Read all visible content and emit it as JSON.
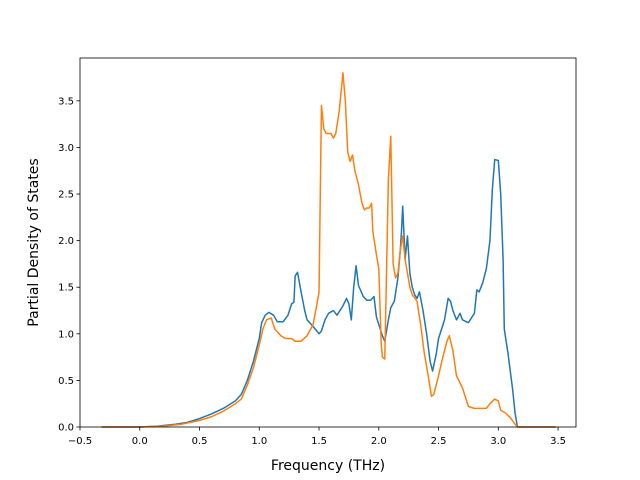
{
  "chart_data": {
    "type": "line",
    "title": "",
    "xlabel": "Frequency (THz)",
    "ylabel": "Partial Density of States",
    "xlim": [
      -0.5,
      3.65
    ],
    "ylim": [
      0.0,
      3.96
    ],
    "xticks": [
      -0.5,
      0.0,
      0.5,
      1.0,
      1.5,
      2.0,
      2.5,
      3.0,
      3.5
    ],
    "xtick_labels": [
      "−0.5",
      "0.0",
      "0.5",
      "1.0",
      "1.5",
      "2.0",
      "2.5",
      "3.0",
      "3.5"
    ],
    "yticks": [
      0.0,
      0.5,
      1.0,
      1.5,
      2.0,
      2.5,
      3.0,
      3.5
    ],
    "ytick_labels": [
      "0.0",
      "0.5",
      "1.0",
      "1.5",
      "2.0",
      "2.5",
      "3.0",
      "3.5"
    ],
    "grid": false,
    "series": [
      {
        "color": "#1f77b4",
        "points": [
          [
            -0.32,
            0.0
          ],
          [
            0.0,
            0.0
          ],
          [
            0.15,
            0.01
          ],
          [
            0.3,
            0.03
          ],
          [
            0.4,
            0.05
          ],
          [
            0.5,
            0.09
          ],
          [
            0.6,
            0.14
          ],
          [
            0.7,
            0.2
          ],
          [
            0.8,
            0.28
          ],
          [
            0.85,
            0.35
          ],
          [
            0.9,
            0.5
          ],
          [
            0.95,
            0.7
          ],
          [
            1.0,
            0.95
          ],
          [
            1.02,
            1.12
          ],
          [
            1.05,
            1.2
          ],
          [
            1.08,
            1.23
          ],
          [
            1.12,
            1.2
          ],
          [
            1.15,
            1.13
          ],
          [
            1.2,
            1.13
          ],
          [
            1.24,
            1.2
          ],
          [
            1.27,
            1.32
          ],
          [
            1.29,
            1.34
          ],
          [
            1.3,
            1.62
          ],
          [
            1.32,
            1.66
          ],
          [
            1.35,
            1.45
          ],
          [
            1.38,
            1.25
          ],
          [
            1.4,
            1.15
          ],
          [
            1.45,
            1.08
          ],
          [
            1.5,
            1.0
          ],
          [
            1.52,
            1.03
          ],
          [
            1.55,
            1.15
          ],
          [
            1.58,
            1.22
          ],
          [
            1.62,
            1.25
          ],
          [
            1.65,
            1.2
          ],
          [
            1.7,
            1.3
          ],
          [
            1.73,
            1.38
          ],
          [
            1.75,
            1.32
          ],
          [
            1.77,
            1.15
          ],
          [
            1.79,
            1.5
          ],
          [
            1.81,
            1.73
          ],
          [
            1.83,
            1.52
          ],
          [
            1.87,
            1.4
          ],
          [
            1.9,
            1.36
          ],
          [
            1.93,
            1.36
          ],
          [
            1.96,
            1.4
          ],
          [
            1.98,
            1.18
          ],
          [
            2.0,
            1.1
          ],
          [
            2.03,
            0.98
          ],
          [
            2.05,
            0.92
          ],
          [
            2.08,
            1.15
          ],
          [
            2.1,
            1.28
          ],
          [
            2.13,
            1.35
          ],
          [
            2.16,
            1.6
          ],
          [
            2.18,
            1.9
          ],
          [
            2.19,
            2.1
          ],
          [
            2.2,
            2.37
          ],
          [
            2.22,
            1.8
          ],
          [
            2.24,
            2.05
          ],
          [
            2.26,
            1.65
          ],
          [
            2.28,
            1.5
          ],
          [
            2.3,
            1.42
          ],
          [
            2.32,
            1.38
          ],
          [
            2.34,
            1.45
          ],
          [
            2.37,
            1.25
          ],
          [
            2.4,
            1.0
          ],
          [
            2.43,
            0.7
          ],
          [
            2.45,
            0.6
          ],
          [
            2.48,
            0.78
          ],
          [
            2.5,
            0.95
          ],
          [
            2.55,
            1.15
          ],
          [
            2.58,
            1.38
          ],
          [
            2.6,
            1.35
          ],
          [
            2.62,
            1.25
          ],
          [
            2.65,
            1.15
          ],
          [
            2.68,
            1.22
          ],
          [
            2.7,
            1.15
          ],
          [
            2.75,
            1.12
          ],
          [
            2.8,
            1.22
          ],
          [
            2.82,
            1.47
          ],
          [
            2.84,
            1.45
          ],
          [
            2.87,
            1.55
          ],
          [
            2.9,
            1.7
          ],
          [
            2.93,
            2.0
          ],
          [
            2.95,
            2.55
          ],
          [
            2.97,
            2.87
          ],
          [
            3.0,
            2.86
          ],
          [
            3.02,
            2.5
          ],
          [
            3.04,
            1.8
          ],
          [
            3.05,
            1.05
          ],
          [
            3.08,
            0.8
          ],
          [
            3.12,
            0.4
          ],
          [
            3.14,
            0.15
          ],
          [
            3.16,
            0.0
          ],
          [
            3.48,
            0.0
          ]
        ]
      },
      {
        "color": "#ff7f0e",
        "points": [
          [
            -0.32,
            0.0
          ],
          [
            0.0,
            0.0
          ],
          [
            0.2,
            0.01
          ],
          [
            0.35,
            0.03
          ],
          [
            0.5,
            0.07
          ],
          [
            0.6,
            0.11
          ],
          [
            0.7,
            0.17
          ],
          [
            0.8,
            0.25
          ],
          [
            0.85,
            0.3
          ],
          [
            0.9,
            0.45
          ],
          [
            0.95,
            0.63
          ],
          [
            1.0,
            0.88
          ],
          [
            1.03,
            1.05
          ],
          [
            1.06,
            1.15
          ],
          [
            1.1,
            1.17
          ],
          [
            1.13,
            1.05
          ],
          [
            1.18,
            0.98
          ],
          [
            1.22,
            0.95
          ],
          [
            1.27,
            0.95
          ],
          [
            1.3,
            0.92
          ],
          [
            1.35,
            0.92
          ],
          [
            1.4,
            0.98
          ],
          [
            1.45,
            1.1
          ],
          [
            1.48,
            1.3
          ],
          [
            1.5,
            1.45
          ],
          [
            1.52,
            3.45
          ],
          [
            1.54,
            3.2
          ],
          [
            1.56,
            3.15
          ],
          [
            1.6,
            3.15
          ],
          [
            1.62,
            3.1
          ],
          [
            1.64,
            3.15
          ],
          [
            1.67,
            3.4
          ],
          [
            1.7,
            3.8
          ],
          [
            1.72,
            3.5
          ],
          [
            1.74,
            2.95
          ],
          [
            1.76,
            2.85
          ],
          [
            1.78,
            2.92
          ],
          [
            1.8,
            2.75
          ],
          [
            1.83,
            2.6
          ],
          [
            1.86,
            2.4
          ],
          [
            1.88,
            2.33
          ],
          [
            1.9,
            2.35
          ],
          [
            1.92,
            2.35
          ],
          [
            1.94,
            2.4
          ],
          [
            1.95,
            2.1
          ],
          [
            1.98,
            1.85
          ],
          [
            2.0,
            1.7
          ],
          [
            2.02,
            0.9
          ],
          [
            2.03,
            0.75
          ],
          [
            2.05,
            0.73
          ],
          [
            2.07,
            2.0
          ],
          [
            2.08,
            2.65
          ],
          [
            2.1,
            3.12
          ],
          [
            2.12,
            1.75
          ],
          [
            2.14,
            1.6
          ],
          [
            2.16,
            1.65
          ],
          [
            2.18,
            1.9
          ],
          [
            2.2,
            2.05
          ],
          [
            2.22,
            1.8
          ],
          [
            2.24,
            1.65
          ],
          [
            2.26,
            1.5
          ],
          [
            2.28,
            1.42
          ],
          [
            2.32,
            1.35
          ],
          [
            2.35,
            1.1
          ],
          [
            2.38,
            0.8
          ],
          [
            2.42,
            0.5
          ],
          [
            2.44,
            0.33
          ],
          [
            2.46,
            0.35
          ],
          [
            2.5,
            0.55
          ],
          [
            2.53,
            0.72
          ],
          [
            2.57,
            0.92
          ],
          [
            2.59,
            0.98
          ],
          [
            2.62,
            0.82
          ],
          [
            2.65,
            0.55
          ],
          [
            2.7,
            0.42
          ],
          [
            2.75,
            0.22
          ],
          [
            2.8,
            0.2
          ],
          [
            2.85,
            0.2
          ],
          [
            2.9,
            0.2
          ],
          [
            2.93,
            0.25
          ],
          [
            2.97,
            0.3
          ],
          [
            3.0,
            0.28
          ],
          [
            3.02,
            0.18
          ],
          [
            3.06,
            0.15
          ],
          [
            3.1,
            0.1
          ],
          [
            3.14,
            0.03
          ],
          [
            3.16,
            0.0
          ],
          [
            3.48,
            0.0
          ]
        ]
      }
    ]
  }
}
